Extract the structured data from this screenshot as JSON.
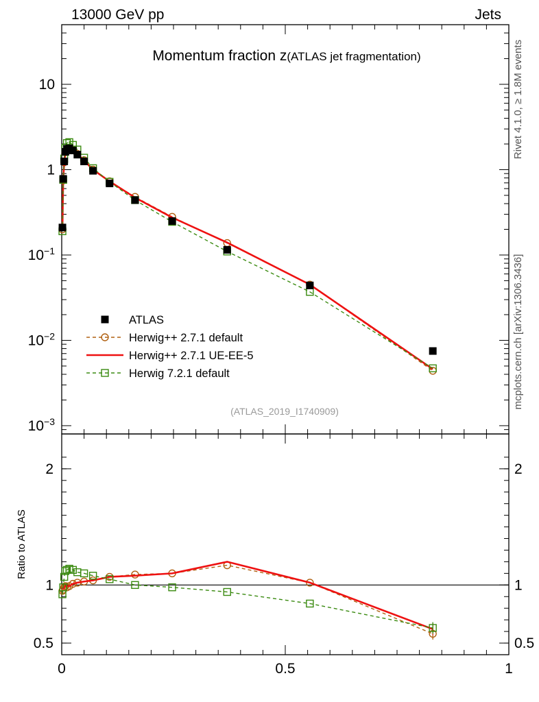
{
  "header": {
    "left": "13000 GeV pp",
    "right": "Jets"
  },
  "side_labels": {
    "rivet": "Rivet 4.1.0, ≥ 1.8M events",
    "mcplots": "mcplots.cern.ch [arXiv:1306.3436]"
  },
  "chart_data": {
    "type": "line",
    "title_main": "Momentum fraction z",
    "title_sub": "(ATLAS jet fragmentation)",
    "analysis_tag": "(ATLAS_2019_I1740909)",
    "xlabel": "",
    "ylabel_ratio": "Ratio to ATLAS",
    "xlim": [
      0,
      1
    ],
    "ylim_main": [
      0.0008,
      50
    ],
    "ylim_ratio": [
      0.4,
      2.3
    ],
    "y_scale_main": "log",
    "x_ticks": [
      "0",
      "0.5",
      "1"
    ],
    "x_tick_values": [
      0,
      0.5,
      1
    ],
    "y_ticks_main": [
      {
        "value": 10,
        "base": "10",
        "exp": ""
      },
      {
        "value": 1,
        "base": "1",
        "exp": ""
      },
      {
        "value": 0.1,
        "base": "10",
        "exp": "−1"
      },
      {
        "value": 0.01,
        "base": "10",
        "exp": "−2"
      },
      {
        "value": 0.001,
        "base": "10",
        "exp": "−3"
      }
    ],
    "y_ticks_ratio": [
      {
        "value": 2,
        "label": "2"
      },
      {
        "value": 1,
        "label": "1"
      },
      {
        "value": 0.5,
        "label": "0.5"
      }
    ],
    "legend_position": "middle-left",
    "series": [
      {
        "name": "ATLAS",
        "role": "data",
        "color": "#000000",
        "marker": "filled-square",
        "x": [
          0.0016,
          0.0033,
          0.0056,
          0.0082,
          0.0116,
          0.017,
          0.025,
          0.035,
          0.05,
          0.07,
          0.107,
          0.164,
          0.247,
          0.37,
          0.555,
          0.83
        ],
        "y": [
          0.21,
          0.78,
          1.25,
          1.62,
          1.75,
          1.78,
          1.68,
          1.5,
          1.25,
          0.97,
          0.69,
          0.44,
          0.25,
          0.115,
          0.044,
          0.0075
        ],
        "ratio": [
          1,
          1,
          1,
          1,
          1,
          1,
          1,
          1,
          1,
          1,
          1,
          1,
          1,
          1,
          1,
          1
        ]
      },
      {
        "name": "Herwig++ 2.7.1 default",
        "role": "mc",
        "color": "#b06010",
        "marker": "open-circle",
        "dashed": true,
        "x": [
          0.0016,
          0.0033,
          0.0056,
          0.0082,
          0.0116,
          0.017,
          0.025,
          0.035,
          0.05,
          0.07,
          0.107,
          0.164,
          0.247,
          0.37,
          0.555,
          0.83
        ],
        "y": [
          0.2,
          0.75,
          1.22,
          1.6,
          1.74,
          1.76,
          1.7,
          1.53,
          1.29,
          1.0,
          0.73,
          0.48,
          0.28,
          0.138,
          0.045,
          0.0044
        ],
        "ratio": [
          0.95,
          0.96,
          0.98,
          0.99,
          0.98,
          0.99,
          1.01,
          1.02,
          1.03,
          1.04,
          1.07,
          1.09,
          1.1,
          1.17,
          1.02,
          0.58
        ],
        "ratio_err": [
          0,
          0,
          0,
          0,
          0,
          0,
          0,
          0,
          0,
          0,
          0,
          0,
          0,
          0,
          0,
          0.05
        ]
      },
      {
        "name": "Herwig++ 2.7.1 UE-EE-5",
        "role": "mc",
        "color": "#ee1111",
        "marker": "none",
        "dashed": false,
        "x": [
          0.0016,
          0.0033,
          0.0056,
          0.0082,
          0.0116,
          0.017,
          0.025,
          0.035,
          0.05,
          0.07,
          0.107,
          0.164,
          0.247,
          0.37,
          0.555,
          0.83
        ],
        "y": [
          0.2,
          0.76,
          1.23,
          1.6,
          1.73,
          1.75,
          1.7,
          1.53,
          1.28,
          1.0,
          0.73,
          0.47,
          0.275,
          0.14,
          0.045,
          0.0046
        ],
        "ratio": [
          0.97,
          0.97,
          0.98,
          0.99,
          0.99,
          0.99,
          1.01,
          1.02,
          1.03,
          1.04,
          1.07,
          1.08,
          1.1,
          1.2,
          1.02,
          0.62
        ],
        "ratio_err": [
          0,
          0,
          0,
          0,
          0,
          0,
          0,
          0,
          0,
          0,
          0,
          0,
          0,
          0,
          0,
          0.05
        ]
      },
      {
        "name": "Herwig 7.2.1 default",
        "role": "mc",
        "color": "#3a8a10",
        "marker": "open-square",
        "dashed": true,
        "x": [
          0.0016,
          0.0033,
          0.0056,
          0.0082,
          0.0116,
          0.017,
          0.025,
          0.035,
          0.05,
          0.07,
          0.107,
          0.164,
          0.247,
          0.37,
          0.555,
          0.83
        ],
        "y": [
          0.19,
          0.76,
          1.35,
          1.8,
          2.05,
          2.1,
          1.95,
          1.72,
          1.38,
          1.04,
          0.72,
          0.44,
          0.245,
          0.11,
          0.037,
          0.0047
        ],
        "ratio": [
          0.92,
          0.98,
          1.07,
          1.12,
          1.13,
          1.14,
          1.13,
          1.11,
          1.1,
          1.08,
          1.05,
          1.0,
          0.98,
          0.94,
          0.84,
          0.63
        ],
        "ratio_err": [
          0,
          0,
          0,
          0,
          0,
          0,
          0,
          0,
          0,
          0,
          0,
          0,
          0,
          0,
          0,
          0.05
        ]
      }
    ]
  }
}
